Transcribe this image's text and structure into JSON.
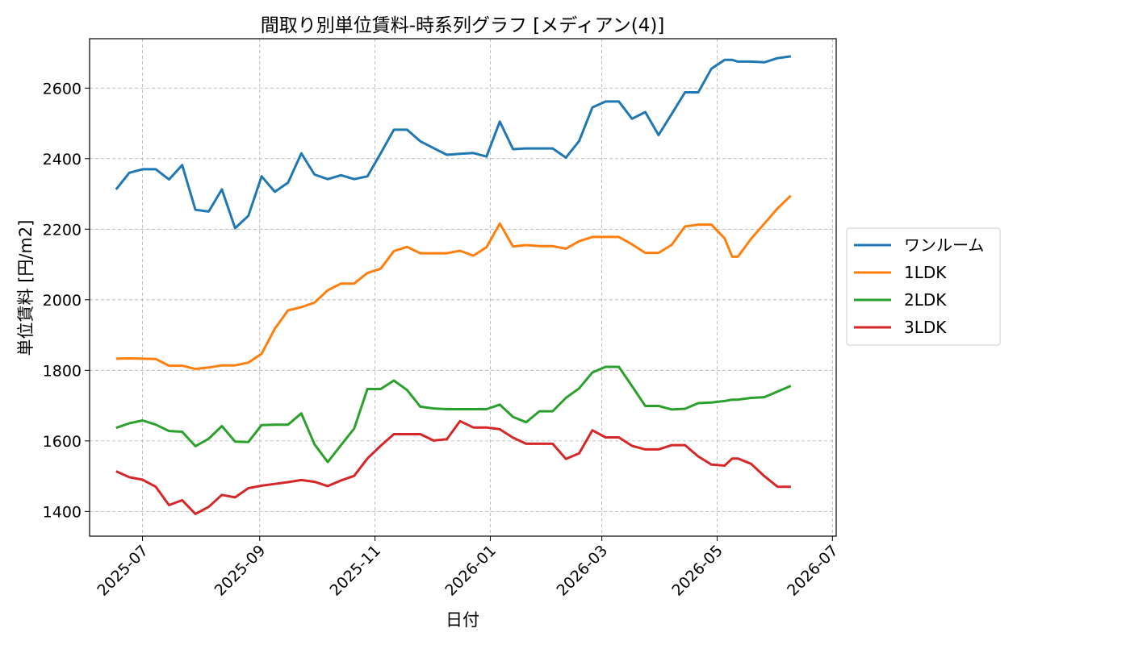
{
  "chart_data": {
    "type": "line",
    "title": "間取り別単位賃料-時系列グラフ [メディアン(4)]",
    "xlabel": "日付",
    "ylabel": "単位賃料 [円/m2]",
    "xlim": [
      "2025-06-03",
      "2026-07-03"
    ],
    "ylim": [
      1330,
      2740
    ],
    "x_ticks": [
      "2025-07",
      "2025-09",
      "2025-11",
      "2026-01",
      "2026-03",
      "2026-05",
      "2026-07"
    ],
    "y_ticks": [
      1400,
      1600,
      1800,
      2000,
      2200,
      2400,
      2600
    ],
    "grid": true,
    "legend_position": "outside-right",
    "x": [
      "2025-06-17",
      "2025-06-24",
      "2025-07-01",
      "2025-07-08",
      "2025-07-15",
      "2025-07-22",
      "2025-07-29",
      "2025-08-05",
      "2025-08-12",
      "2025-08-19",
      "2025-08-26",
      "2025-09-02",
      "2025-09-09",
      "2025-09-16",
      "2025-09-23",
      "2025-09-30",
      "2025-10-07",
      "2025-10-14",
      "2025-10-21",
      "2025-10-28",
      "2025-11-04",
      "2025-11-11",
      "2025-11-18",
      "2025-11-25",
      "2025-12-02",
      "2025-12-09",
      "2025-12-16",
      "2025-12-23",
      "2025-12-30",
      "2026-01-06",
      "2026-01-13",
      "2026-01-20",
      "2026-01-27",
      "2026-02-03",
      "2026-02-10",
      "2026-02-17",
      "2026-02-24",
      "2026-03-03",
      "2026-03-10",
      "2026-03-17",
      "2026-03-24",
      "2026-03-31",
      "2026-04-07",
      "2026-04-14",
      "2026-04-21",
      "2026-04-28",
      "2026-05-05",
      "2026-05-09",
      "2026-05-12",
      "2026-05-19",
      "2026-05-26",
      "2026-06-02",
      "2026-06-09",
      "2026-06-16"
    ],
    "series": [
      {
        "name": "ワンルーム",
        "color": "#1f77b4",
        "values": [
          2313,
          2360,
          2370,
          2370,
          2341,
          2382,
          2255,
          2250,
          2313,
          2203,
          2238,
          2350,
          2306,
          2332,
          2415,
          2355,
          2342,
          2353,
          2342,
          2350,
          2415,
          2482,
          2482,
          2449,
          2430,
          2411,
          2414,
          2416,
          2406,
          2505,
          2427,
          2429,
          2429,
          2429,
          2403,
          2450,
          2545,
          2562,
          2562,
          2513,
          2532,
          2467,
          2527,
          2588,
          2588,
          2655,
          2680,
          2680,
          2675,
          2675,
          2673,
          2685,
          2690,
          null
        ]
      },
      {
        "name": "1LDK",
        "color": "#ff7f0e",
        "values": [
          1833,
          1834,
          1833,
          1832,
          1813,
          1813,
          1804,
          1808,
          1814,
          1814,
          1822,
          1847,
          1918,
          1970,
          1979,
          1992,
          2027,
          2046,
          2046,
          2076,
          2088,
          2138,
          2150,
          2132,
          2132,
          2132,
          2139,
          2125,
          2149,
          2216,
          2151,
          2155,
          2152,
          2152,
          2145,
          2166,
          2178,
          2178,
          2178,
          2157,
          2133,
          2133,
          2156,
          2208,
          2213,
          2213,
          2174,
          2122,
          2122,
          2173,
          2216,
          2259,
          2295,
          null
        ]
      },
      {
        "name": "2LDK",
        "color": "#2ca02c",
        "values": [
          1637,
          1650,
          1658,
          1646,
          1628,
          1626,
          1585,
          1606,
          1642,
          1598,
          1597,
          1645,
          1646,
          1646,
          1678,
          1590,
          1540,
          1588,
          1635,
          1747,
          1747,
          1771,
          1744,
          1697,
          1692,
          1690,
          1690,
          1690,
          1690,
          1703,
          1668,
          1653,
          1684,
          1684,
          1722,
          1749,
          1794,
          1810,
          1810,
          1755,
          1699,
          1699,
          1689,
          1691,
          1707,
          1709,
          1713,
          1717,
          1717,
          1722,
          1724,
          1740,
          1756,
          null
        ]
      },
      {
        "name": "3LDK",
        "color": "#d62728",
        "values": [
          1514,
          1497,
          1490,
          1470,
          1418,
          1432,
          1393,
          1413,
          1447,
          1440,
          1466,
          1473,
          1478,
          1483,
          1489,
          1484,
          1472,
          1488,
          1501,
          1550,
          1586,
          1619,
          1619,
          1619,
          1601,
          1605,
          1656,
          1638,
          1638,
          1633,
          1609,
          1592,
          1592,
          1592,
          1549,
          1565,
          1630,
          1610,
          1610,
          1586,
          1576,
          1576,
          1588,
          1588,
          1556,
          1533,
          1530,
          1550,
          1550,
          1535,
          1500,
          1470,
          1470,
          null
        ]
      }
    ]
  }
}
